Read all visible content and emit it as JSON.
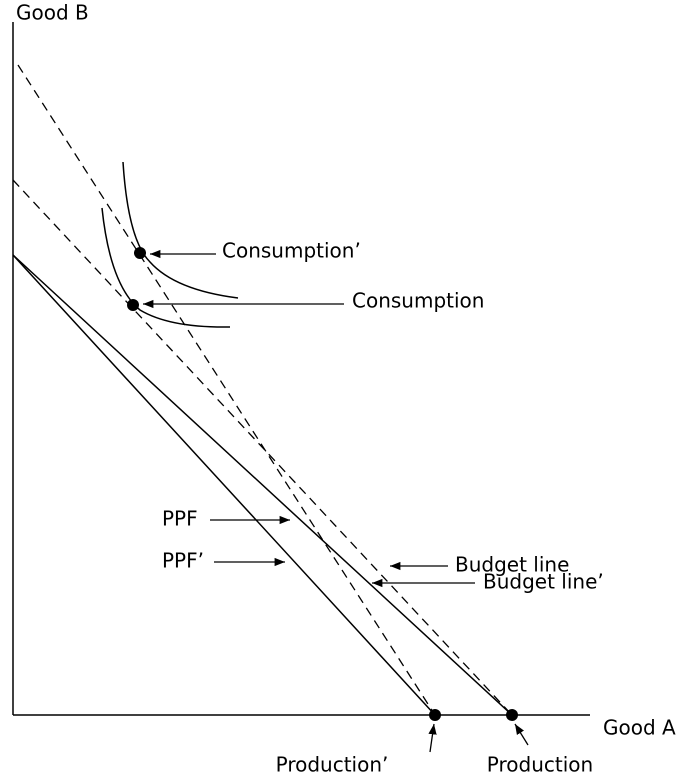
{
  "axes": {
    "y_label": "Good B",
    "x_label": "Good A"
  },
  "labels": {
    "consumption_prime": "Consumption’",
    "consumption": "Consumption",
    "ppf": "PPF",
    "ppf_prime": "PPF’",
    "budget_line": "Budget line",
    "budget_line_prime": "Budget line’",
    "production_prime": "Production’",
    "production": "Production"
  }
}
